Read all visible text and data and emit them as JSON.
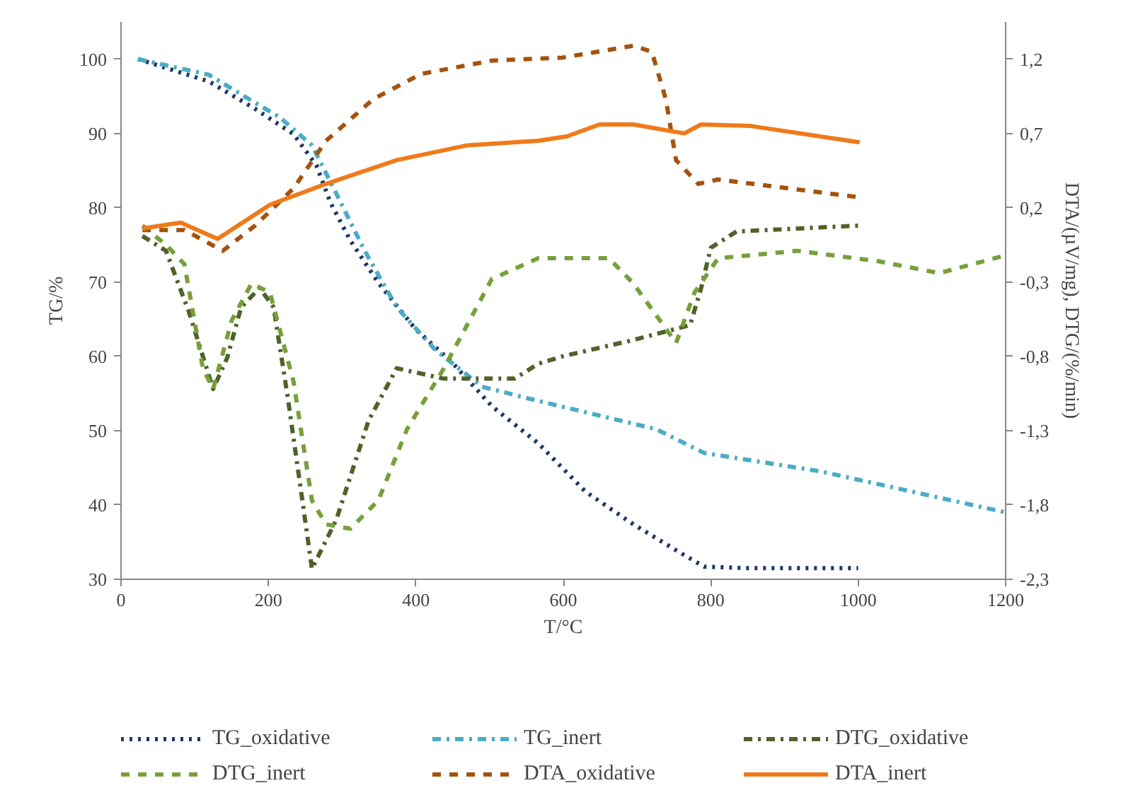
{
  "chart_data": {
    "type": "line",
    "xlabel": "T/°C",
    "ylabel": "TG/%",
    "y2label": "DTA/(µV/mg), DTG/(%/min)",
    "xlim": [
      0,
      1200
    ],
    "xticks": [
      0,
      200,
      400,
      600,
      800,
      1000,
      1200
    ],
    "ylim": [
      30,
      105
    ],
    "yticks": [
      30,
      40,
      50,
      60,
      70,
      80,
      90,
      100
    ],
    "y2lim": [
      -2.3,
      1.45
    ],
    "y2ticks": [
      {
        "value": -2.3,
        "label": "-2,3"
      },
      {
        "value": -1.8,
        "label": "-1,8"
      },
      {
        "value": -1.3,
        "label": "-1,3"
      },
      {
        "value": -0.8,
        "label": "-0,8"
      },
      {
        "value": -0.3,
        "label": "-0,3"
      },
      {
        "value": 0.2,
        "label": "0,2"
      },
      {
        "value": 0.7,
        "label": "0,7"
      },
      {
        "value": 1.2,
        "label": "1,2"
      }
    ],
    "grid": false,
    "legend": "bottom",
    "series": [
      {
        "name": "TG_oxidative",
        "color": "#1f3864",
        "line_style": "dotted",
        "x": [
          23,
          119,
          182,
          234,
          265,
          284,
          311,
          349,
          400,
          447,
          503,
          566,
          630,
          695,
          758,
          791,
          850,
          1000
        ],
        "values": [
          100,
          97,
          93.3,
          89.9,
          85.7,
          80.7,
          75.6,
          69.9,
          63.6,
          59.4,
          53.3,
          48.3,
          41.8,
          37.4,
          33.6,
          31.7,
          31.5,
          31.5
        ]
      },
      {
        "name": "TG_inert",
        "color": "#4bacc6",
        "line_style": "dashdot",
        "x": [
          23,
          119,
          182,
          215,
          259,
          292,
          330,
          374,
          426,
          490,
          566,
          726,
          791,
          950,
          1200
        ],
        "values": [
          100,
          97.9,
          94.1,
          92.2,
          88.4,
          81.9,
          74.3,
          66.6,
          60.9,
          55.9,
          54,
          50.2,
          47,
          44.5,
          39
        ]
      },
      {
        "name": "DTG_oxidative",
        "color": "#4f6228",
        "line_style": "dashdot",
        "axis": "y2",
        "x": [
          29,
          61,
          92,
          125,
          144,
          163,
          188,
          207,
          226,
          246,
          259,
          292,
          336,
          374,
          438,
          534,
          566,
          599,
          695,
          772,
          787,
          800,
          835,
          1002
        ],
        "values": [
          0.01,
          -0.09,
          -0.5,
          -1.02,
          -0.81,
          -0.47,
          -0.34,
          -0.47,
          -1.07,
          -1.77,
          -2.23,
          -1.9,
          -1.23,
          -0.88,
          -0.95,
          -0.95,
          -0.85,
          -0.8,
          -0.69,
          -0.59,
          -0.34,
          -0.07,
          0.04,
          0.08
        ]
      },
      {
        "name": "DTG_inert",
        "color": "#77a03c",
        "line_style": "dashed",
        "axis": "y2",
        "x": [
          29,
          61,
          86,
          111,
          125,
          150,
          177,
          202,
          234,
          259,
          278,
          311,
          349,
          388,
          438,
          503,
          566,
          662,
          695,
          753,
          778,
          810,
          918,
          1027,
          1110,
          1200
        ],
        "values": [
          0.08,
          -0.05,
          -0.18,
          -0.88,
          -1.02,
          -0.56,
          -0.31,
          -0.37,
          -0.97,
          -1.77,
          -1.93,
          -1.96,
          -1.77,
          -1.29,
          -0.88,
          -0.28,
          -0.14,
          -0.14,
          -0.31,
          -0.71,
          -0.37,
          -0.14,
          -0.09,
          -0.16,
          -0.24,
          -0.12
        ]
      },
      {
        "name": "DTA_oxidative",
        "color": "#a5520f",
        "line_style": "dashed",
        "axis": "y2",
        "x": [
          29,
          86,
          138,
          182,
          234,
          278,
          342,
          407,
          503,
          599,
          695,
          720,
          739,
          753,
          783,
          810,
          1002
        ],
        "values": [
          0.05,
          0.05,
          -0.09,
          0.08,
          0.33,
          0.65,
          0.93,
          1.1,
          1.19,
          1.21,
          1.29,
          1.25,
          0.93,
          0.52,
          0.36,
          0.39,
          0.27
        ]
      },
      {
        "name": "DTA_inert",
        "color": "#f07a1a",
        "line_style": "solid",
        "axis": "y2",
        "x": [
          29,
          81,
          131,
          202,
          278,
          374,
          470,
          566,
          605,
          649,
          695,
          764,
          787,
          854,
          1002
        ],
        "values": [
          0.06,
          0.1,
          -0.01,
          0.22,
          0.36,
          0.52,
          0.62,
          0.65,
          0.68,
          0.76,
          0.76,
          0.7,
          0.76,
          0.75,
          0.64
        ]
      }
    ]
  }
}
